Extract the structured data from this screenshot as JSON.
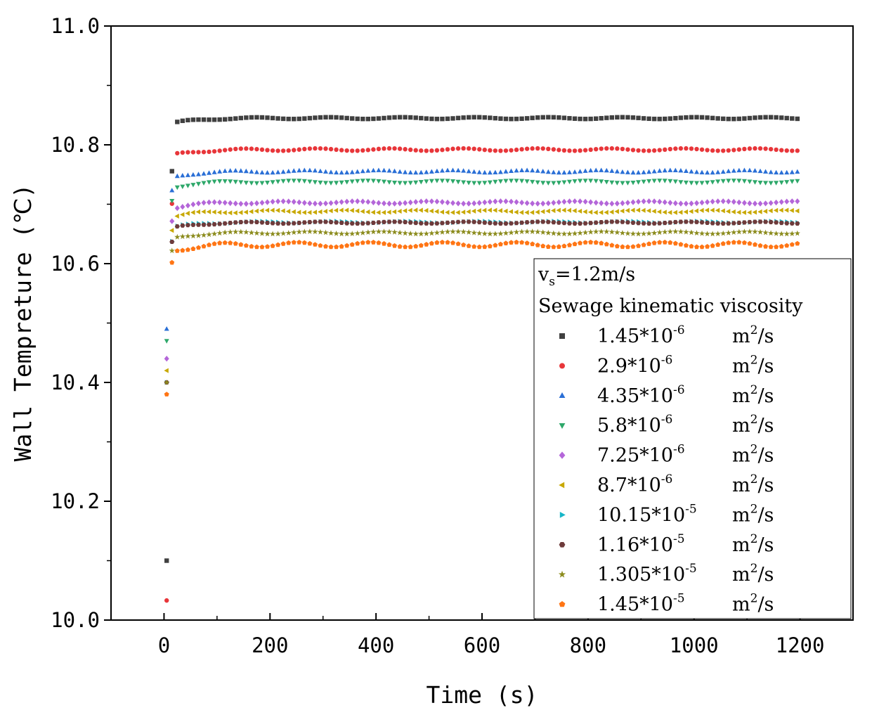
{
  "chart_data": {
    "type": "scatter",
    "title": "",
    "xlabel": "Time (s)",
    "ylabel": "Wall Tempreture (℃)",
    "xlim": [
      -100,
      1300
    ],
    "ylim": [
      10.0,
      11.0
    ],
    "xticks": [
      0,
      200,
      400,
      600,
      800,
      1000,
      1200
    ],
    "xtick_labels": [
      "0",
      "200",
      "400",
      "600",
      "800",
      "1000",
      "1200"
    ],
    "yticks": [
      10.0,
      10.2,
      10.4,
      10.6,
      10.8,
      11.0
    ],
    "ytick_labels": [
      "10.0",
      "10.2",
      "10.4",
      "10.6",
      "10.8",
      "11.0"
    ],
    "grid": false,
    "legend_position": "right",
    "legend": {
      "condition_label": "v",
      "condition_subscript": "s",
      "condition_value": "=1.2m/s",
      "heading": "Sewage kinematic viscosity",
      "unit_base": "m",
      "unit_power": "2",
      "unit_suffix": "/s"
    },
    "series": [
      {
        "label": "1.45*10",
        "exponent": "-6",
        "color": "#404040",
        "marker": "square",
        "initial": 10.1,
        "steady": 10.845,
        "ripple": 0.0015
      },
      {
        "label": "2.9*10",
        "exponent": "-6",
        "color": "#e8363a",
        "marker": "circle",
        "initial": 10.033,
        "steady": 10.792,
        "ripple": 0.002
      },
      {
        "label": "4.35*10",
        "exponent": "-6",
        "color": "#2a6fd6",
        "marker": "triangle-up",
        "initial": 10.49,
        "steady": 10.755,
        "ripple": 0.002
      },
      {
        "label": "5.8*10",
        "exponent": "-6",
        "color": "#2ea86a",
        "marker": "triangle-down",
        "initial": 10.47,
        "steady": 10.738,
        "ripple": 0.002
      },
      {
        "label": "7.25*10",
        "exponent": "-6",
        "color": "#b466d9",
        "marker": "diamond",
        "initial": 10.44,
        "steady": 10.703,
        "ripple": 0.002
      },
      {
        "label": "8.7*10",
        "exponent": "-6",
        "color": "#c8a800",
        "marker": "triangle-left",
        "initial": 10.42,
        "steady": 10.688,
        "ripple": 0.002
      },
      {
        "label": "10.15*10",
        "exponent": "-5",
        "color": "#17b6c8",
        "marker": "triangle-right",
        "initial": 10.4,
        "steady": 10.67,
        "ripple": 0.0015
      },
      {
        "label": "1.16*10",
        "exponent": "-5",
        "color": "#6e3b3b",
        "marker": "hexagon",
        "initial": 10.4,
        "steady": 10.669,
        "ripple": 0.0015
      },
      {
        "label": "1.305*10",
        "exponent": "-5",
        "color": "#8c8c1e",
        "marker": "star",
        "initial": 10.4,
        "steady": 10.652,
        "ripple": 0.002
      },
      {
        "label": "1.45*10",
        "exponent": "-5",
        "color": "#ff7514",
        "marker": "pentagon",
        "initial": 10.38,
        "steady": 10.632,
        "ripple": 0.004
      }
    ],
    "x_start": 5,
    "x_end": 1200,
    "x_step": 10
  }
}
